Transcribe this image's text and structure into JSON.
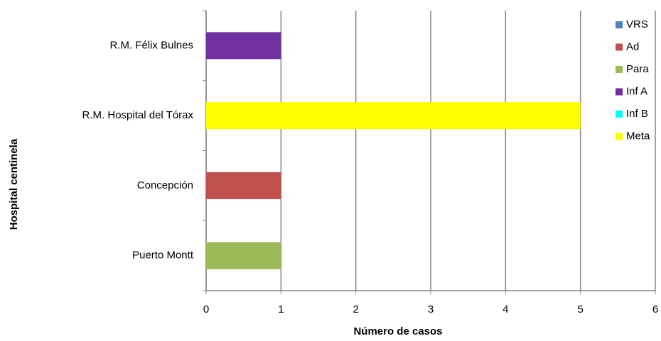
{
  "chart_data": {
    "type": "stacked-barh",
    "xlabel": "Número de casos",
    "ylabel": "Hospital centinela",
    "categories": [
      "R.M. Félix Bulnes",
      "R.M. Hospital del Tórax",
      "Concepción",
      "Puerto Montt"
    ],
    "series": [
      {
        "name": "VRS",
        "color": "#4f81bd",
        "values": [
          0,
          0,
          0,
          0
        ]
      },
      {
        "name": "Ad",
        "color": "#c0504d",
        "values": [
          0,
          0,
          1,
          0
        ]
      },
      {
        "name": "Para",
        "color": "#9bbb59",
        "values": [
          0,
          0,
          0,
          1
        ]
      },
      {
        "name": "Inf A",
        "color": "#7030a0",
        "values": [
          1,
          0,
          0,
          0
        ]
      },
      {
        "name": "Inf B",
        "color": "#00ffff",
        "values": [
          0,
          0,
          0,
          0
        ]
      },
      {
        "name": "Meta",
        "color": "#ffff00",
        "values": [
          0,
          5,
          0,
          0
        ]
      }
    ],
    "xlim": [
      0,
      6
    ],
    "xticks": [
      0,
      1,
      2,
      3,
      4,
      5,
      6
    ],
    "grid": true,
    "legend": "right"
  }
}
